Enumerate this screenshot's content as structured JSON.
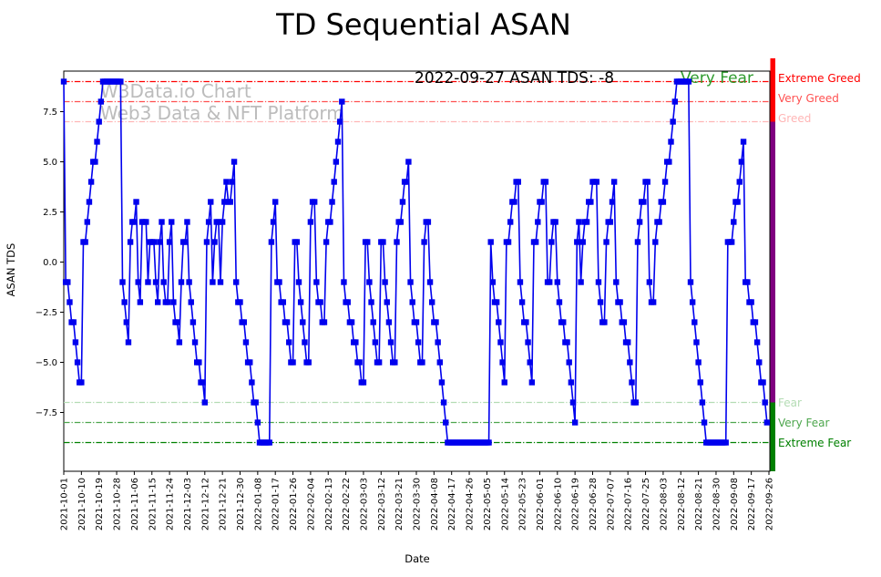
{
  "title": "TD Sequential ASAN",
  "watermark": {
    "line1": "W3Data.io Chart",
    "line2": "Web3 Data & NFT Platform",
    "color": "#bcbcbc"
  },
  "annotation": {
    "text": "2022-09-27 ASAN TDS: -8",
    "sentiment": "Very Fear",
    "text_color": "#000000",
    "sentiment_color": "#2e9b2e"
  },
  "axes": {
    "xlabel": "Date",
    "ylabel": "ASAN TDS",
    "y_ticks": [
      {
        "label": "7.5",
        "value": 7.5
      },
      {
        "label": "5.0",
        "value": 5.0
      },
      {
        "label": "2.5",
        "value": 2.5
      },
      {
        "label": "0.0",
        "value": 0.0
      },
      {
        "label": "−2.5",
        "value": -2.5
      },
      {
        "label": "−5.0",
        "value": -5.0
      },
      {
        "label": "−7.5",
        "value": -7.5
      }
    ],
    "x_ticks": [
      "2021-10-01",
      "2021-10-10",
      "2021-10-19",
      "2021-10-28",
      "2021-11-06",
      "2021-11-15",
      "2021-11-24",
      "2021-12-03",
      "2021-12-12",
      "2021-12-21",
      "2021-12-30",
      "2022-01-08",
      "2022-01-17",
      "2022-01-26",
      "2022-02-04",
      "2022-02-13",
      "2022-02-22",
      "2022-03-03",
      "2022-03-12",
      "2022-03-21",
      "2022-03-30",
      "2022-04-08",
      "2022-04-17",
      "2022-04-26",
      "2022-05-05",
      "2022-05-14",
      "2022-05-23",
      "2022-06-01",
      "2022-06-10",
      "2022-06-19",
      "2022-06-28",
      "2022-07-07",
      "2022-07-16",
      "2022-07-25",
      "2022-08-03",
      "2022-08-12",
      "2022-08-21",
      "2022-08-30",
      "2022-09-08",
      "2022-09-17",
      "2022-09-26"
    ]
  },
  "thresholds": [
    {
      "label": "Extreme Greed",
      "value": 9,
      "color": "#ff0000"
    },
    {
      "label": "Very Greed",
      "value": 8,
      "color": "#ff5050"
    },
    {
      "label": "Greed",
      "value": 7,
      "color": "#ffb6b6"
    },
    {
      "label": "Fear",
      "value": -7,
      "color": "#b4dcb4"
    },
    {
      "label": "Very Fear",
      "value": -8,
      "color": "#4da64d"
    },
    {
      "label": "Extreme Fear",
      "value": -9,
      "color": "#008000"
    }
  ],
  "zone_bar": {
    "greed_color": "#ff0000",
    "neutral_color": "#800080",
    "fear_color": "#008000"
  },
  "chart_data": {
    "type": "line",
    "title": "TD Sequential ASAN",
    "xlabel": "Date",
    "ylabel": "ASAN TDS",
    "x_range": [
      "2021-10-01",
      "2022-09-27"
    ],
    "x_unit": "days",
    "ylim": [
      -10.4,
      9.4
    ],
    "grid": false,
    "series": [
      {
        "name": "ASAN TDS",
        "color": "#0000ee",
        "marker": "square",
        "start_date": "2021-10-01",
        "values": [
          9,
          -1,
          -1,
          -2,
          -3,
          -3,
          -4,
          -5,
          -6,
          -6,
          1,
          1,
          2,
          3,
          4,
          5,
          5,
          6,
          7,
          8,
          9,
          9,
          9,
          9,
          9,
          9,
          9,
          9,
          9,
          9,
          -1,
          -2,
          -3,
          -4,
          1,
          2,
          2,
          3,
          -1,
          -2,
          2,
          2,
          2,
          -1,
          1,
          1,
          1,
          -1,
          -2,
          1,
          2,
          -1,
          -2,
          -2,
          1,
          2,
          -2,
          -3,
          -3,
          -4,
          -1,
          1,
          1,
          2,
          -1,
          -2,
          -3,
          -4,
          -5,
          -5,
          -6,
          -6,
          -7,
          1,
          2,
          3,
          -1,
          1,
          2,
          2,
          -1,
          2,
          3,
          4,
          3,
          3,
          4,
          5,
          -1,
          -2,
          -2,
          -3,
          -3,
          -4,
          -5,
          -5,
          -6,
          -7,
          -7,
          -8,
          -9,
          -9,
          -9,
          -9,
          -9,
          -9,
          1,
          2,
          3,
          -1,
          -1,
          -2,
          -2,
          -3,
          -3,
          -4,
          -5,
          -5,
          1,
          1,
          -1,
          -2,
          -3,
          -4,
          -5,
          -5,
          2,
          3,
          3,
          -1,
          -2,
          -2,
          -3,
          -3,
          1,
          2,
          2,
          3,
          4,
          5,
          6,
          7,
          8,
          -1,
          -2,
          -2,
          -3,
          -3,
          -4,
          -4,
          -5,
          -5,
          -6,
          -6,
          1,
          1,
          -1,
          -2,
          -3,
          -4,
          -5,
          -5,
          1,
          1,
          -1,
          -2,
          -3,
          -4,
          -5,
          -5,
          1,
          2,
          2,
          3,
          4,
          4,
          5,
          -1,
          -2,
          -3,
          -3,
          -4,
          -5,
          -5,
          1,
          2,
          2,
          -1,
          -2,
          -3,
          -3,
          -4,
          -5,
          -6,
          -7,
          -8,
          -9,
          -9,
          -9,
          -9,
          -9,
          -9,
          -9,
          -9,
          -9,
          -9,
          -9,
          -9,
          -9,
          -9,
          -9,
          -9,
          -9,
          -9,
          -9,
          -9,
          -9,
          -9,
          1,
          -1,
          -2,
          -2,
          -3,
          -4,
          -5,
          -6,
          1,
          1,
          2,
          3,
          3,
          4,
          4,
          -1,
          -2,
          -3,
          -3,
          -4,
          -5,
          -6,
          1,
          1,
          2,
          3,
          3,
          4,
          4,
          -1,
          -1,
          1,
          2,
          2,
          -1,
          -2,
          -3,
          -3,
          -4,
          -4,
          -5,
          -6,
          -7,
          -8,
          1,
          2,
          -1,
          1,
          2,
          2,
          3,
          3,
          4,
          4,
          4,
          -1,
          -2,
          -3,
          -3,
          1,
          2,
          2,
          3,
          4,
          -1,
          -2,
          -2,
          -3,
          -3,
          -4,
          -4,
          -5,
          -6,
          -7,
          -7,
          1,
          2,
          3,
          3,
          4,
          4,
          -1,
          -2,
          -2,
          1,
          2,
          2,
          3,
          3,
          4,
          5,
          5,
          6,
          7,
          8,
          9,
          9,
          9,
          9,
          9,
          9,
          9,
          -1,
          -2,
          -3,
          -4,
          -5,
          -6,
          -7,
          -8,
          -9,
          -9,
          -9,
          -9,
          -9,
          -9,
          -9,
          -9,
          -9,
          -9,
          -9,
          1,
          1,
          1,
          2,
          3,
          3,
          4,
          5,
          6,
          -1,
          -1,
          -2,
          -2,
          -3,
          -3,
          -4,
          -5,
          -6,
          -6,
          -7,
          -8
        ]
      }
    ]
  }
}
